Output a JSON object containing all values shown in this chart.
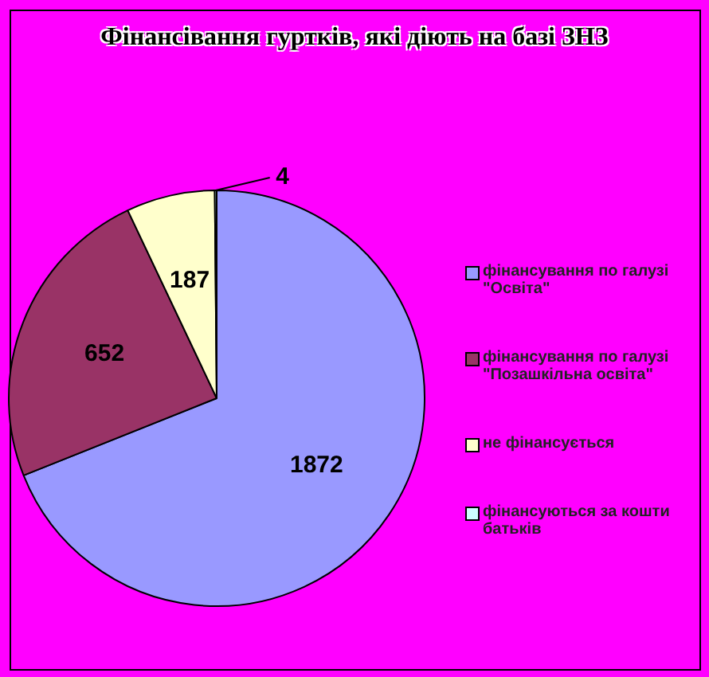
{
  "chart_data": {
    "type": "pie",
    "title": "Фінансівання гуртків, які діють на базі ЗНЗ",
    "categories": [
      "фінансування по галузі \"Освіта\"",
      "фінансування по галузі \"Позашкільна освіта\"",
      "не фінансується",
      "фінансуються за кошти батьків"
    ],
    "values": [
      1872,
      652,
      187,
      4
    ],
    "colors": [
      "#9999ff",
      "#993366",
      "#ffffcc",
      "#ccffff"
    ],
    "data_labels": true,
    "legend": "right"
  }
}
